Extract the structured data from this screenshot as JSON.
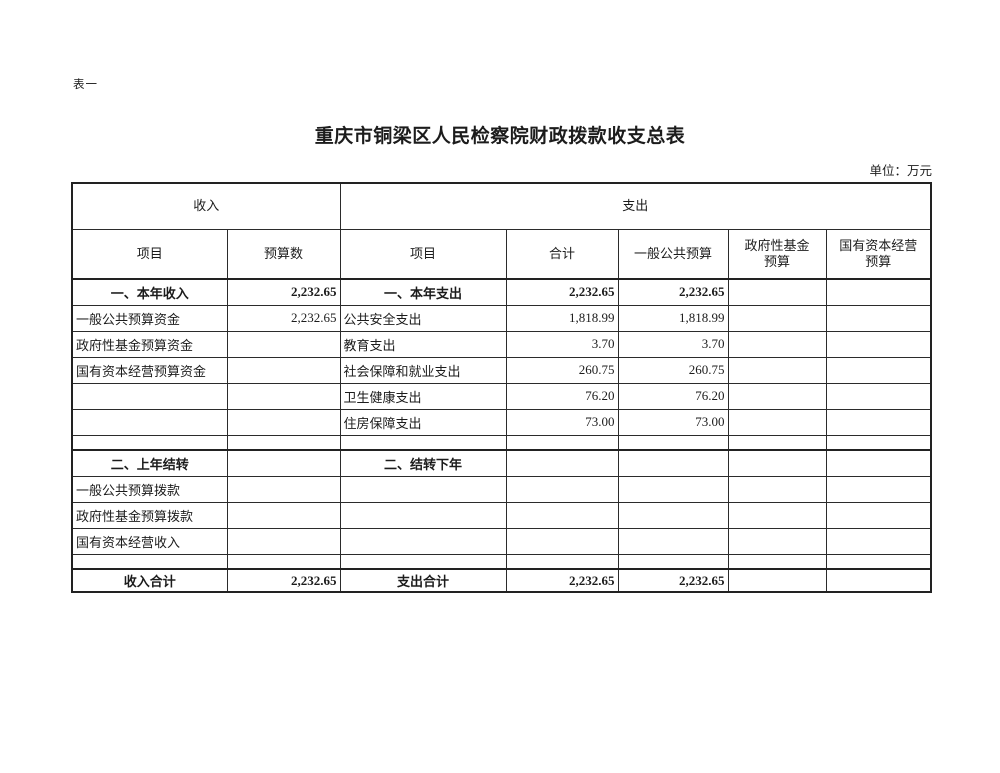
{
  "page": {
    "table_label": "表一",
    "title": "重庆市铜梁区人民检察院财政拨款收支总表",
    "unit_note": "单位：万元"
  },
  "table": {
    "group_headers": {
      "income": "收入",
      "expenditure": "支出"
    },
    "column_headers": [
      "项目",
      "预算数",
      "项目",
      "合计",
      "一般公共预算",
      "政府性基金\n预算",
      "国有资本经营\n预算"
    ],
    "rows": [
      {
        "type": "section",
        "cells": [
          "一、本年收入",
          "2,232.65",
          "一、本年支出",
          "2,232.65",
          "2,232.65",
          "",
          ""
        ]
      },
      {
        "type": "data",
        "cells": [
          "一般公共预算资金",
          "2,232.65",
          "公共安全支出",
          "1,818.99",
          "1,818.99",
          "",
          ""
        ]
      },
      {
        "type": "data",
        "cells": [
          "政府性基金预算资金",
          "",
          "教育支出",
          "3.70",
          "3.70",
          "",
          ""
        ]
      },
      {
        "type": "data",
        "cells": [
          "国有资本经营预算资金",
          "",
          "社会保障和就业支出",
          "260.75",
          "260.75",
          "",
          ""
        ]
      },
      {
        "type": "data",
        "cells": [
          "",
          "",
          "卫生健康支出",
          "76.20",
          "76.20",
          "",
          ""
        ]
      },
      {
        "type": "data",
        "cells": [
          "",
          "",
          "住房保障支出",
          "73.00",
          "73.00",
          "",
          ""
        ]
      },
      {
        "type": "spacer",
        "cells": [
          "",
          "",
          "",
          "",
          "",
          "",
          ""
        ]
      },
      {
        "type": "section",
        "cells": [
          "二、上年结转",
          "",
          "二、结转下年",
          "",
          "",
          "",
          ""
        ]
      },
      {
        "type": "data",
        "cells": [
          "一般公共预算拨款",
          "",
          "",
          "",
          "",
          "",
          ""
        ]
      },
      {
        "type": "data",
        "cells": [
          "政府性基金预算拨款",
          "",
          "",
          "",
          "",
          "",
          ""
        ]
      },
      {
        "type": "data",
        "cells": [
          "国有资本经营收入",
          "",
          "",
          "",
          "",
          "",
          ""
        ]
      },
      {
        "type": "spacer",
        "cells": [
          "",
          "",
          "",
          "",
          "",
          "",
          ""
        ]
      },
      {
        "type": "section",
        "cells": [
          "收入合计",
          "2,232.65",
          "支出合计",
          "2,232.65",
          "2,232.65",
          "",
          ""
        ]
      }
    ]
  }
}
